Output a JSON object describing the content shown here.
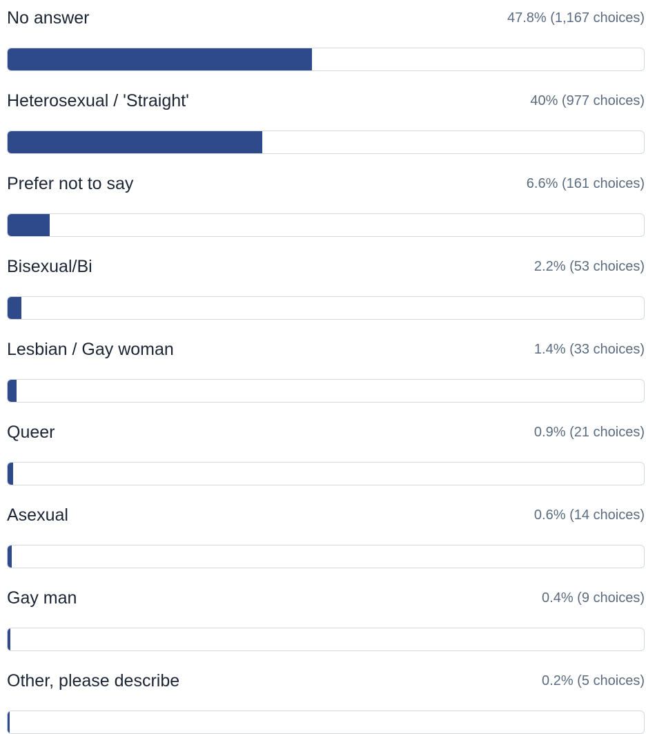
{
  "results": {
    "bar_color": "#2f4a8a",
    "track_border_color": "#d3d8e0",
    "items": [
      {
        "label": "No answer",
        "stat": "47.8% (1,167 choices)",
        "percent": 47.8
      },
      {
        "label": "Heterosexual / 'Straight'",
        "stat": "40% (977 choices)",
        "percent": 40
      },
      {
        "label": "Prefer not to say",
        "stat": "6.6% (161 choices)",
        "percent": 6.6
      },
      {
        "label": "Bisexual/Bi",
        "stat": "2.2% (53 choices)",
        "percent": 2.2
      },
      {
        "label": "Lesbian / Gay woman",
        "stat": "1.4% (33 choices)",
        "percent": 1.4
      },
      {
        "label": "Queer",
        "stat": "0.9% (21 choices)",
        "percent": 0.9
      },
      {
        "label": "Asexual",
        "stat": "0.6% (14 choices)",
        "percent": 0.6
      },
      {
        "label": "Gay man",
        "stat": "0.4% (9 choices)",
        "percent": 0.4
      },
      {
        "label": "Other, please describe",
        "stat": "0.2% (5 choices)",
        "percent": 0.2
      }
    ]
  }
}
